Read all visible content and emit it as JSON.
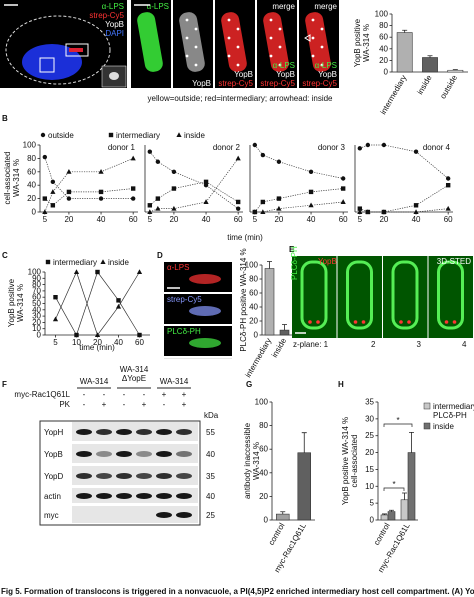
{
  "panel_letters": [
    "B",
    "C",
    "D",
    "E",
    "F",
    "G",
    "H"
  ],
  "panel_a": {
    "overview_labels": [
      {
        "text": "α-LPS",
        "color": "#44ee44"
      },
      {
        "text": "strep-Cy5",
        "color": "#ff3333"
      },
      {
        "text": "YopB",
        "color": "#ffffff"
      },
      {
        "text": "DAPI",
        "color": "#4477ff"
      }
    ],
    "zoom_panels": [
      {
        "top_labels": [
          {
            "text": "α-LPS",
            "color": "#44ee44"
          }
        ],
        "bottom_labels": []
      },
      {
        "top_labels": [],
        "bottom_labels": [
          {
            "text": "YopB",
            "color": "#ffffff"
          }
        ]
      },
      {
        "top_labels": [],
        "bottom_labels": [
          {
            "text": "YopB",
            "color": "#ffffff"
          },
          {
            "text": "strep-Cy5",
            "color": "#ff3333"
          }
        ]
      },
      {
        "top_labels": [
          {
            "text": "merge",
            "color": "#ffffff"
          }
        ],
        "bottom_labels": [
          {
            "text": "α-LPS",
            "color": "#44ee44"
          },
          {
            "text": "YopB",
            "color": "#ffffff"
          },
          {
            "text": "strep-Cy5",
            "color": "#ff3333"
          }
        ]
      },
      {
        "top_labels": [
          {
            "text": "merge",
            "color": "#ffffff"
          }
        ],
        "bottom_labels": [
          {
            "text": "α-LPS",
            "color": "#44ee44"
          },
          {
            "text": "YopB",
            "color": "#ffffff"
          },
          {
            "text": "strep-Cy5",
            "color": "#ff3333"
          }
        ]
      }
    ],
    "note": "yellow=outside; red=intermediary; arrowhead: inside"
  },
  "panel_d": {
    "labels": [
      {
        "text": "α-LPS",
        "color": "#ff3333"
      },
      {
        "text": "strep-Cy5",
        "color": "#8899ff"
      },
      {
        "text": "PLCδ-PH",
        "color": "#44ee44"
      }
    ]
  },
  "panel_e": {
    "labels": [
      {
        "text": "PLCδ-PH",
        "color": "#44ee44"
      },
      {
        "text": "YopB",
        "color": "#ff3333"
      },
      {
        "text": "3D-STED",
        "color": "#ffffff"
      }
    ],
    "z_planes": [
      "z-plane: 1",
      "2",
      "3",
      "4"
    ]
  },
  "panel_f": {
    "groups": [
      "WA-314",
      "WA-314\nΔYopE",
      "WA-314"
    ],
    "conditions": [
      {
        "name": "myc-Rac1Q61L",
        "signs": [
          "-",
          "-",
          "-",
          "-",
          "+",
          "+"
        ]
      },
      {
        "name": "PK",
        "signs": [
          "-",
          "+",
          "-",
          "+",
          "-",
          "+"
        ]
      }
    ],
    "unit": "kDa",
    "rows": [
      {
        "name": "YopH",
        "kda": "55"
      },
      {
        "name": "YopB",
        "kda": "40"
      },
      {
        "name": "YopD",
        "kda": "35"
      },
      {
        "name": "actin",
        "kda": "40"
      },
      {
        "name": "myc",
        "kda": "25"
      }
    ]
  },
  "chart_data": [
    {
      "type": "bar",
      "ylabel": "YopB positive\nWA-314 %",
      "categories": [
        "intermediary",
        "inside",
        "outside"
      ],
      "values": [
        68,
        25,
        3
      ],
      "errors": [
        4,
        3,
        1
      ],
      "colors": [
        "#b0b0b0",
        "#606060",
        "#ffffff"
      ],
      "ylim": [
        0,
        100
      ],
      "yticks": [
        0,
        20,
        40,
        60,
        80,
        100
      ]
    },
    {
      "type": "line",
      "title": "donor 1",
      "ylabel": "cell-associated\nWA-314 %",
      "xlabel": "time (min)",
      "x": [
        5,
        10,
        20,
        40,
        60
      ],
      "xlim": [
        2,
        63
      ],
      "xticks": [
        5,
        20,
        40,
        60
      ],
      "ylim": [
        0,
        100
      ],
      "yticks": [
        0,
        20,
        40,
        60,
        80,
        100
      ],
      "line_style": "dotted",
      "legend": "top",
      "series": [
        {
          "name": "outside",
          "marker": "circle",
          "values": [
            82,
            45,
            20,
            20,
            20
          ]
        },
        {
          "name": "intermediary",
          "marker": "square",
          "values": [
            20,
            10,
            30,
            30,
            35
          ]
        },
        {
          "name": "inside",
          "marker": "triangle",
          "values": [
            0,
            30,
            60,
            60,
            80
          ]
        }
      ]
    },
    {
      "type": "line",
      "title": "donor 2",
      "x": [
        5,
        10,
        20,
        40,
        60
      ],
      "xlim": [
        2,
        63
      ],
      "xticks": [
        5,
        20,
        40,
        60
      ],
      "ylim": [
        0,
        100
      ],
      "line_style": "dotted",
      "series": [
        {
          "marker": "circle",
          "values": [
            90,
            75,
            60,
            40,
            5
          ]
        },
        {
          "marker": "square",
          "values": [
            10,
            20,
            35,
            45,
            15
          ]
        },
        {
          "marker": "triangle",
          "values": [
            0,
            5,
            5,
            15,
            80
          ]
        }
      ]
    },
    {
      "type": "line",
      "title": "donor 3",
      "x": [
        5,
        10,
        20,
        40,
        60
      ],
      "xlim": [
        2,
        63
      ],
      "xticks": [
        5,
        20,
        40,
        60
      ],
      "ylim": [
        0,
        100
      ],
      "line_style": "dotted",
      "series": [
        {
          "marker": "circle",
          "values": [
            100,
            85,
            75,
            60,
            50
          ]
        },
        {
          "marker": "square",
          "values": [
            0,
            15,
            20,
            30,
            35
          ]
        },
        {
          "marker": "triangle",
          "values": [
            0,
            0,
            5,
            10,
            15
          ]
        }
      ]
    },
    {
      "type": "line",
      "title": "donor 4",
      "x": [
        5,
        10,
        20,
        40,
        60
      ],
      "xlim": [
        2,
        63
      ],
      "xticks": [
        5,
        20,
        40,
        60
      ],
      "ylim": [
        0,
        100
      ],
      "line_style": "dotted",
      "series": [
        {
          "marker": "circle",
          "values": [
            95,
            100,
            100,
            90,
            50
          ]
        },
        {
          "marker": "square",
          "values": [
            5,
            0,
            0,
            10,
            40
          ]
        },
        {
          "marker": "triangle",
          "values": [
            0,
            0,
            0,
            0,
            5
          ]
        }
      ]
    },
    {
      "type": "line",
      "ylabel": "YopB positive\nWA-314 %",
      "xlabel": "time (min)",
      "categories": [
        "5",
        "10",
        "20",
        "40",
        "60"
      ],
      "ylim": [
        0,
        100
      ],
      "yticks": [
        0,
        10,
        20,
        30,
        40,
        50,
        60,
        70,
        80,
        90,
        100
      ],
      "line_style": "solid",
      "legend": "top",
      "series": [
        {
          "name": "intermediary",
          "marker": "square",
          "values": [
            60,
            0,
            100,
            55,
            0
          ]
        },
        {
          "name": "inside",
          "marker": "triangle",
          "values": [
            25,
            100,
            0,
            45,
            100
          ]
        }
      ]
    },
    {
      "type": "bar",
      "ylabel": "PLCδ-PH positive WA-314 %",
      "categories": [
        "intermediary",
        "inside"
      ],
      "values": [
        95,
        7
      ],
      "errors": [
        10,
        8
      ],
      "colors": [
        "#b0b0b0",
        "#606060"
      ],
      "ylim": [
        0,
        100
      ],
      "yticks": [
        0,
        20,
        40,
        60,
        80,
        100
      ]
    },
    {
      "type": "bar",
      "ylabel": "antibody inaccessible\nWA-314 %",
      "categories": [
        "control",
        "myc-Rac1Q61L"
      ],
      "values": [
        5,
        57
      ],
      "errors": [
        2,
        17
      ],
      "colors": [
        "#a0a0a0",
        "#606060"
      ],
      "ylim": [
        0,
        100
      ],
      "yticks": [
        0,
        20,
        40,
        60,
        80,
        100
      ]
    },
    {
      "type": "grouped_bar",
      "ylabel": "YopB positive WA-314 %\ncell-associated",
      "categories": [
        "control",
        "myc-Rac1Q61L"
      ],
      "ylim": [
        0,
        35
      ],
      "yticks": [
        0,
        5,
        10,
        15,
        20,
        25,
        30,
        35
      ],
      "legend": "right",
      "annotations": [
        "*",
        "*"
      ],
      "series": [
        {
          "name": "intermediary/\nPLCδ-PH",
          "color": "#c8c8c8",
          "values": [
            1.5,
            6
          ],
          "errors": [
            0.3,
            2
          ]
        },
        {
          "name": "inside",
          "color": "#707070",
          "values": [
            2.5,
            20
          ],
          "errors": [
            0.4,
            6
          ]
        }
      ]
    }
  ],
  "caption": "Fig 5. Formation of translocons is triggered in a nonvacuole, a PI(4,5)P2 enriched intermediary host cell compartment. (A) YopB positive"
}
